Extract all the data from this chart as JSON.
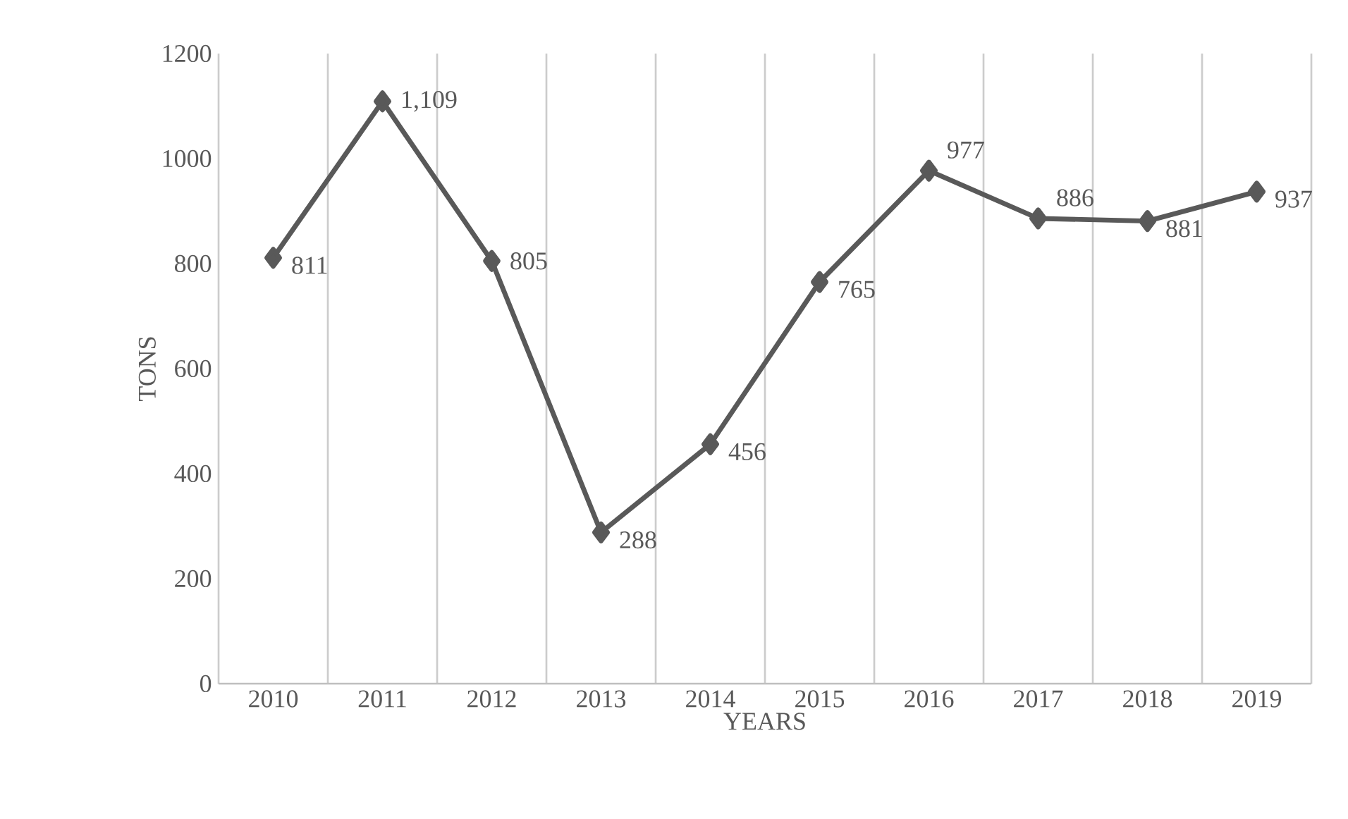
{
  "chart_data": {
    "type": "line",
    "xlabel": "YEARS",
    "ylabel": "TONS",
    "categories": [
      "2010",
      "2011",
      "2012",
      "2013",
      "2014",
      "2015",
      "2016",
      "2017",
      "2018",
      "2019"
    ],
    "series": [
      {
        "color": "#595959",
        "values": [
          811,
          1109,
          805,
          288,
          456,
          765,
          977,
          886,
          881,
          937
        ],
        "value_labels": [
          "811",
          "1,109",
          "805",
          "288",
          "456",
          "765",
          "977",
          "886",
          "881",
          "937"
        ]
      }
    ],
    "ylim": [
      0,
      1200
    ],
    "yticks": [
      0,
      200,
      400,
      600,
      800,
      1000,
      1200
    ],
    "grid": "x",
    "marker": "diamond",
    "line_style": "solid"
  }
}
